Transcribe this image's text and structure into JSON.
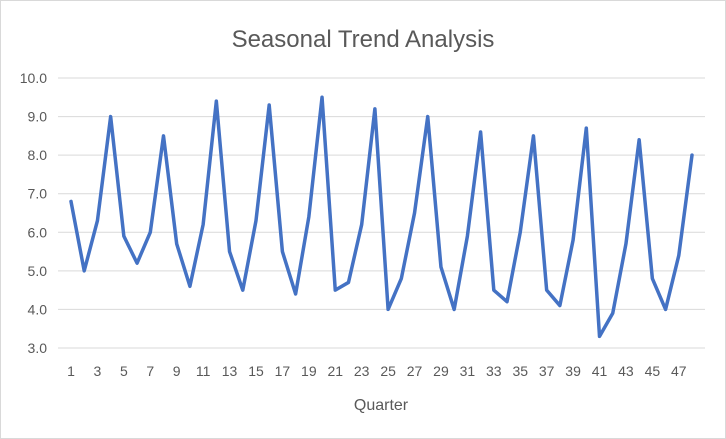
{
  "chart_data": {
    "type": "line",
    "title": "Seasonal Trend Analysis",
    "xlabel": "Quarter",
    "ylabel": "",
    "ylim": [
      3.0,
      10.0
    ],
    "y_ticks": [
      "3.0",
      "4.0",
      "5.0",
      "6.0",
      "7.0",
      "8.0",
      "9.0",
      "10.0"
    ],
    "x_tick_labels": [
      "1",
      "3",
      "5",
      "7",
      "9",
      "11",
      "13",
      "15",
      "17",
      "19",
      "21",
      "23",
      "25",
      "27",
      "29",
      "31",
      "33",
      "35",
      "37",
      "39",
      "41",
      "43",
      "45",
      "47"
    ],
    "x": [
      1,
      2,
      3,
      4,
      5,
      6,
      7,
      8,
      9,
      10,
      11,
      12,
      13,
      14,
      15,
      16,
      17,
      18,
      19,
      20,
      21,
      22,
      23,
      24,
      25,
      26,
      27,
      28,
      29,
      30,
      31,
      32,
      33,
      34,
      35,
      36,
      37,
      38,
      39,
      40,
      41,
      42,
      43,
      44,
      45,
      46,
      47,
      48
    ],
    "series": [
      {
        "color": "#4472c4",
        "values": [
          6.8,
          5.0,
          6.3,
          9.0,
          5.9,
          5.2,
          6.0,
          8.5,
          5.7,
          4.6,
          6.2,
          9.4,
          5.5,
          4.5,
          6.3,
          9.3,
          5.5,
          4.4,
          6.4,
          9.5,
          4.5,
          4.7,
          6.2,
          9.2,
          4.0,
          4.8,
          6.5,
          9.0,
          5.1,
          4.0,
          5.9,
          8.6,
          4.5,
          4.2,
          6.0,
          8.5,
          4.5,
          4.1,
          5.8,
          8.7,
          3.3,
          3.9,
          5.7,
          8.4,
          4.8,
          4.0,
          5.4,
          8.0
        ]
      }
    ],
    "grid": true,
    "legend": "none"
  }
}
